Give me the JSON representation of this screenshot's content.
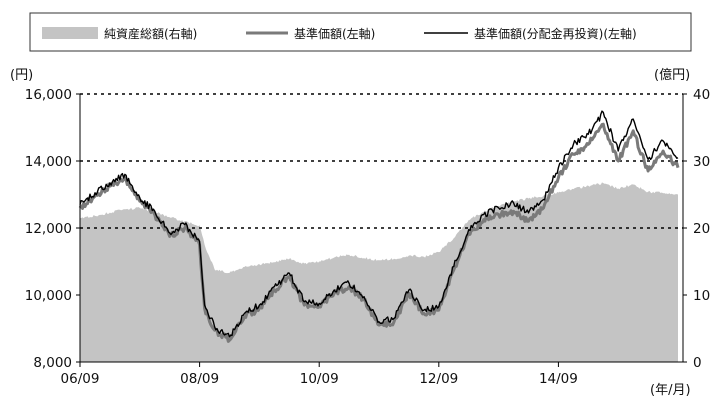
{
  "chart_data": {
    "type": "area",
    "x_categories": [
      "06/09",
      "08/09",
      "10/09",
      "12/09",
      "14/09"
    ],
    "x_unit_label": "(年/月)",
    "y_left": {
      "unit_label": "(円)",
      "min": 8000,
      "max": 16000,
      "ticks": [
        "8,000",
        "10,000",
        "12,000",
        "14,000",
        "16,000"
      ]
    },
    "y_right": {
      "unit_label": "(億円)",
      "min": 0,
      "max": 40,
      "ticks": [
        "0",
        "10",
        "20",
        "30",
        "40"
      ]
    },
    "grid": "dotted horizontal at 12,000 / 14,000 / 16,000",
    "legend_position": "top",
    "colors": {
      "net_assets_fill": "#c4c4c4",
      "nav_line": "#7a7a7a",
      "nav_reinvested_line": "#000000",
      "grid": "#000000"
    },
    "series": [
      {
        "name": "純資産総額(右軸)",
        "axis": "right",
        "style": "area",
        "points": [
          [
            "2006-09",
            21.5
          ],
          [
            "2006-12",
            21.8
          ],
          [
            "2007-03",
            22.3
          ],
          [
            "2007-06",
            22.8
          ],
          [
            "2007-09",
            23.0
          ],
          [
            "2007-12",
            22.4
          ],
          [
            "2008-03",
            21.6
          ],
          [
            "2008-06",
            21.0
          ],
          [
            "2008-09",
            20.4
          ],
          [
            "2008-10",
            17.5
          ],
          [
            "2008-12",
            13.8
          ],
          [
            "2009-03",
            13.3
          ],
          [
            "2009-06",
            14.2
          ],
          [
            "2009-09",
            14.6
          ],
          [
            "2009-12",
            14.9
          ],
          [
            "2010-03",
            15.4
          ],
          [
            "2010-06",
            14.7
          ],
          [
            "2010-09",
            15.0
          ],
          [
            "2010-12",
            15.6
          ],
          [
            "2011-03",
            16.0
          ],
          [
            "2011-06",
            15.5
          ],
          [
            "2011-09",
            15.2
          ],
          [
            "2011-12",
            15.4
          ],
          [
            "2012-03",
            15.9
          ],
          [
            "2012-06",
            15.7
          ],
          [
            "2012-09",
            16.4
          ],
          [
            "2012-12",
            18.5
          ],
          [
            "2013-03",
            21.2
          ],
          [
            "2013-06",
            22.4
          ],
          [
            "2013-09",
            23.3
          ],
          [
            "2013-12",
            24.0
          ],
          [
            "2014-03",
            24.4
          ],
          [
            "2014-06",
            24.8
          ],
          [
            "2014-09",
            25.3
          ],
          [
            "2014-12",
            25.8
          ],
          [
            "2015-03",
            26.3
          ],
          [
            "2015-06",
            26.7
          ],
          [
            "2015-09",
            25.9
          ],
          [
            "2015-12",
            26.5
          ],
          [
            "2016-03",
            25.4
          ],
          [
            "2016-06",
            25.2
          ],
          [
            "2016-09",
            25.0
          ]
        ]
      },
      {
        "name": "基準価額(左軸)",
        "axis": "left",
        "style": "line",
        "points": [
          [
            "2006-09",
            12600
          ],
          [
            "2006-12",
            12950
          ],
          [
            "2007-03",
            13250
          ],
          [
            "2007-06",
            13500
          ],
          [
            "2007-09",
            12800
          ],
          [
            "2007-12",
            12400
          ],
          [
            "2008-03",
            11750
          ],
          [
            "2008-06",
            12000
          ],
          [
            "2008-09",
            11500
          ],
          [
            "2008-10",
            9600
          ],
          [
            "2008-12",
            8950
          ],
          [
            "2009-03",
            8650
          ],
          [
            "2009-06",
            9350
          ],
          [
            "2009-09",
            9600
          ],
          [
            "2009-12",
            10150
          ],
          [
            "2010-03",
            10550
          ],
          [
            "2010-06",
            9700
          ],
          [
            "2010-09",
            9650
          ],
          [
            "2010-12",
            10050
          ],
          [
            "2011-03",
            10250
          ],
          [
            "2011-06",
            9850
          ],
          [
            "2011-09",
            9100
          ],
          [
            "2011-12",
            9200
          ],
          [
            "2012-03",
            10050
          ],
          [
            "2012-06",
            9450
          ],
          [
            "2012-09",
            9550
          ],
          [
            "2012-12",
            10750
          ],
          [
            "2013-03",
            11800
          ],
          [
            "2013-06",
            12250
          ],
          [
            "2013-09",
            12400
          ],
          [
            "2013-12",
            12500
          ],
          [
            "2014-03",
            12200
          ],
          [
            "2014-06",
            12600
          ],
          [
            "2014-09",
            13500
          ],
          [
            "2014-12",
            14200
          ],
          [
            "2015-03",
            14500
          ],
          [
            "2015-06",
            15100
          ],
          [
            "2015-09",
            14000
          ],
          [
            "2015-12",
            14900
          ],
          [
            "2016-03",
            13700
          ],
          [
            "2016-06",
            14300
          ],
          [
            "2016-09",
            13800
          ]
        ]
      },
      {
        "name": "基準価額(分配金再投資)(左軸)",
        "axis": "left",
        "style": "line",
        "points": [
          [
            "2006-09",
            12700
          ],
          [
            "2006-12",
            13050
          ],
          [
            "2007-03",
            13350
          ],
          [
            "2007-06",
            13600
          ],
          [
            "2007-09",
            12900
          ],
          [
            "2007-12",
            12500
          ],
          [
            "2008-03",
            11850
          ],
          [
            "2008-06",
            12100
          ],
          [
            "2008-09",
            11600
          ],
          [
            "2008-10",
            9700
          ],
          [
            "2008-12",
            9050
          ],
          [
            "2009-03",
            8750
          ],
          [
            "2009-06",
            9450
          ],
          [
            "2009-09",
            9700
          ],
          [
            "2009-12",
            10250
          ],
          [
            "2010-03",
            10650
          ],
          [
            "2010-06",
            9800
          ],
          [
            "2010-09",
            9750
          ],
          [
            "2010-12",
            10150
          ],
          [
            "2011-03",
            10350
          ],
          [
            "2011-06",
            9950
          ],
          [
            "2011-09",
            9200
          ],
          [
            "2011-12",
            9300
          ],
          [
            "2012-03",
            10150
          ],
          [
            "2012-06",
            9550
          ],
          [
            "2012-09",
            9650
          ],
          [
            "2012-12",
            10850
          ],
          [
            "2013-03",
            11950
          ],
          [
            "2013-06",
            12400
          ],
          [
            "2013-09",
            12600
          ],
          [
            "2013-12",
            12750
          ],
          [
            "2014-03",
            12450
          ],
          [
            "2014-06",
            12850
          ],
          [
            "2014-09",
            13800
          ],
          [
            "2014-12",
            14500
          ],
          [
            "2015-03",
            14800
          ],
          [
            "2015-06",
            15450
          ],
          [
            "2015-09",
            14300
          ],
          [
            "2015-12",
            15250
          ],
          [
            "2016-03",
            14050
          ],
          [
            "2016-06",
            14600
          ],
          [
            "2016-09",
            14100
          ]
        ]
      }
    ]
  }
}
